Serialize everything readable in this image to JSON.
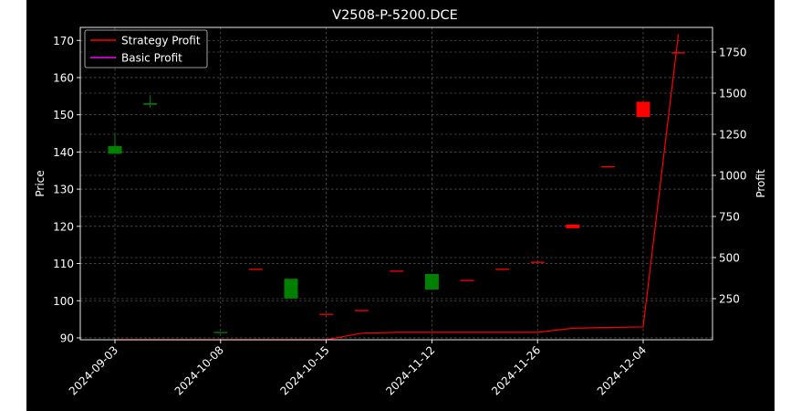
{
  "chart_data": {
    "type": "candlestick",
    "title": "V2508-P-5200.DCE",
    "ylabel": "Price",
    "ylabel_right": "Profit",
    "ylim": [
      89.5,
      173.5
    ],
    "ylim_right": [
      0,
      1900
    ],
    "yticks": [
      90,
      100,
      110,
      120,
      130,
      140,
      150,
      160,
      170
    ],
    "yticks_right": [
      250,
      500,
      750,
      1000,
      1250,
      1500,
      1750
    ],
    "xtick_labels": [
      "2024-09-03",
      "2024-10-08",
      "2024-10-15",
      "2024-11-12",
      "2024-11-26",
      "2024-12-04"
    ],
    "xtick_indices": [
      0,
      3,
      6,
      9,
      12,
      15
    ],
    "grid": true,
    "legend": {
      "position": "top-left",
      "entries": [
        {
          "label": "Strategy Profit",
          "color": "#ff0000"
        },
        {
          "label": "Basic Profit",
          "color": "#ff00ff"
        }
      ]
    },
    "candles": [
      {
        "i": 0,
        "open": 139.5,
        "close": 141.6,
        "high": 144.8,
        "low": 139.5
      },
      {
        "i": 1,
        "open": 152.7,
        "close": 153.1,
        "high": 155.2,
        "low": 151.9
      },
      {
        "i": 3,
        "open": 91.4,
        "close": 91.6,
        "high": 91.6,
        "low": 91.4
      },
      {
        "i": 4,
        "open": 108.6,
        "close": 108.3,
        "high": 108.6,
        "low": 108.3
      },
      {
        "i": 5,
        "open": 100.6,
        "close": 105.9,
        "high": 105.9,
        "low": 100.6
      },
      {
        "i": 6,
        "open": 96.5,
        "close": 96.3,
        "high": 96.5,
        "low": 96.3
      },
      {
        "i": 7,
        "open": 97.5,
        "close": 97.3,
        "high": 97.5,
        "low": 97.3
      },
      {
        "i": 8,
        "open": 108.1,
        "close": 107.9,
        "high": 108.1,
        "low": 107.9
      },
      {
        "i": 9,
        "open": 103.0,
        "close": 107.2,
        "high": 107.2,
        "low": 103.0
      },
      {
        "i": 10,
        "open": 105.6,
        "close": 105.4,
        "high": 105.6,
        "low": 105.4
      },
      {
        "i": 11,
        "open": 108.6,
        "close": 108.4,
        "high": 108.6,
        "low": 108.4
      },
      {
        "i": 12,
        "open": 110.5,
        "close": 110.3,
        "high": 110.5,
        "low": 110.3
      },
      {
        "i": 13,
        "open": 120.5,
        "close": 119.5,
        "high": 120.5,
        "low": 119.5
      },
      {
        "i": 14,
        "open": 136.2,
        "close": 136.0,
        "high": 136.2,
        "low": 136.0
      },
      {
        "i": 15,
        "open": 153.5,
        "close": 149.4,
        "high": 153.5,
        "low": 149.4
      },
      {
        "i": 16,
        "open": 166.8,
        "close": 166.6,
        "high": 166.8,
        "low": 166.6
      }
    ],
    "series": [
      {
        "name": "Strategy Profit",
        "color": "#ff0000",
        "x": [
          0,
          1,
          2,
          3,
          4,
          5,
          6,
          7,
          8,
          9,
          10,
          11,
          12,
          13,
          14,
          15,
          16
        ],
        "values": [
          0,
          0,
          0,
          0,
          0,
          0,
          0,
          40,
          45,
          45,
          45,
          45,
          45,
          70,
          75,
          78,
          1860
        ]
      },
      {
        "name": "Basic Profit",
        "color": "#ff00ff",
        "x": [],
        "values": []
      }
    ]
  }
}
